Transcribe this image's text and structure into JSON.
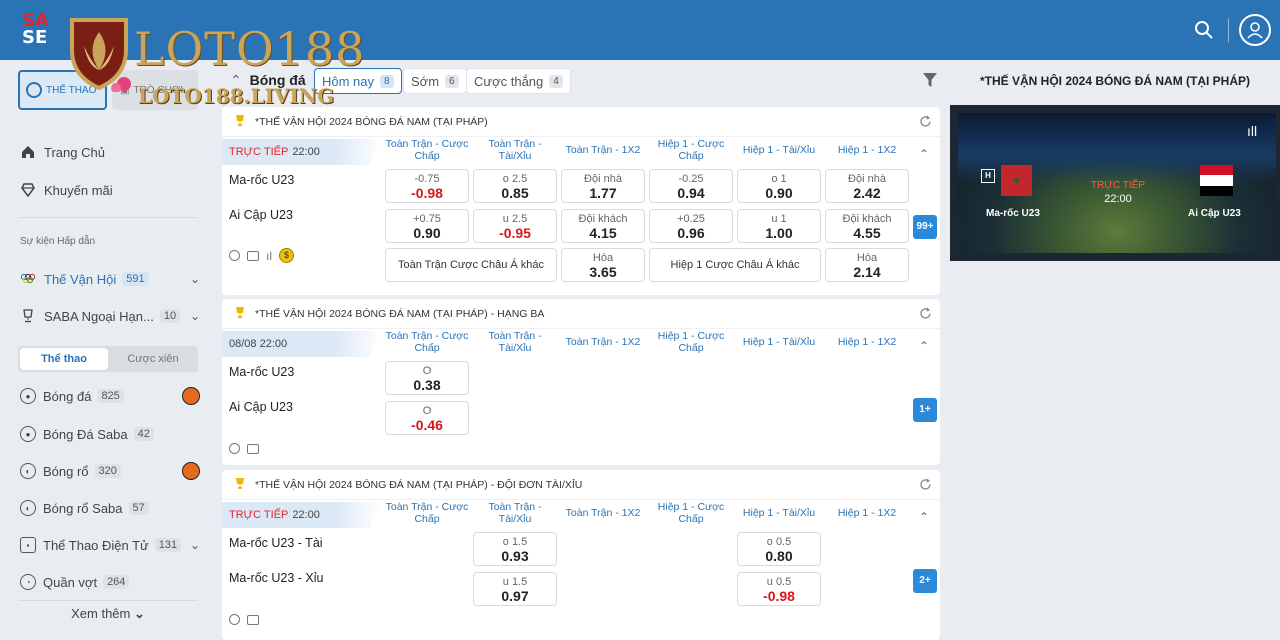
{
  "brand": {
    "saba_line1": "SA",
    "saba_line2": "SE",
    "logo_text": "LOTO188",
    "logo_sub": "LOTO188.LIVING"
  },
  "header": {
    "search_icon": "search-icon",
    "avatar_icon": "user-avatar-icon"
  },
  "sidebar": {
    "top_tabs": [
      {
        "label": "THỂ THAO",
        "active": true
      },
      {
        "label": "TRÒ CHƠI",
        "active": false
      }
    ],
    "nav": [
      {
        "label": "Trang Chủ",
        "icon": "home-icon"
      },
      {
        "label": "Khuyến mãi",
        "icon": "diamond-icon"
      }
    ],
    "section_title": "Sự kiện Hấp dẫn",
    "events": [
      {
        "label": "Thế Vận Hội",
        "count": "591"
      },
      {
        "label": "SABA Ngoại Hạn...",
        "count": "10"
      }
    ],
    "segment": {
      "on": "Thể thao",
      "off": "Cược xiên"
    },
    "sports": [
      {
        "label": "Bóng đá",
        "count": "825"
      },
      {
        "label": "Bóng Đá Saba",
        "count": "42"
      },
      {
        "label": "Bóng rổ",
        "count": "320"
      },
      {
        "label": "Bóng rổ Saba",
        "count": "57"
      },
      {
        "label": "Thể Thao Điện Tử",
        "count": "131"
      },
      {
        "label": "Quần vợt",
        "count": "264"
      }
    ],
    "see_more": "Xem thêm"
  },
  "filter_bar": {
    "title": "Bóng đá",
    "tabs": [
      {
        "label": "Hôm nay",
        "count": "8",
        "active": true
      },
      {
        "label": "Sớm",
        "count": "6",
        "active": false
      },
      {
        "label": "Cược thắng",
        "count": "4",
        "active": false
      }
    ]
  },
  "columns": [
    "Toàn Trận - Cược Chấp",
    "Toàn Trận - Tài/Xỉu",
    "Toàn Trận - 1X2",
    "Hiệp 1 - Cược Chấp",
    "Hiệp 1 - Tài/Xỉu",
    "Hiệp 1 - 1X2"
  ],
  "cards": [
    {
      "title": "*THẾ VẬN HỘI 2024 BÓNG ĐÁ NAM (TẠI PHÁP)",
      "live": "TRỰC TIẾP",
      "time": "22:00",
      "home": "Ma-rốc U23",
      "away": "Ai Cập U23",
      "home_odds": [
        {
          "sub": "-0.75",
          "val": "-0.98",
          "neg": true
        },
        {
          "sub": "o 2.5",
          "val": "0.85"
        },
        {
          "sub": "Đội nhà",
          "val": "1.77"
        },
        {
          "sub": "-0.25",
          "val": "0.94"
        },
        {
          "sub": "o 1",
          "val": "0.90"
        },
        {
          "sub": "Đội nhà",
          "val": "2.42"
        }
      ],
      "away_odds": [
        {
          "sub": "+0.75",
          "val": "0.90"
        },
        {
          "sub": "u 2.5",
          "val": "-0.95",
          "neg": true
        },
        {
          "sub": "Đội khách",
          "val": "4.15"
        },
        {
          "sub": "+0.25",
          "val": "0.96"
        },
        {
          "sub": "u 1",
          "val": "1.00"
        },
        {
          "sub": "Đội khách",
          "val": "4.55"
        }
      ],
      "extra_row": {
        "asian_full": "Toàn Trận Cược Châu Á khác",
        "draw_full_sub": "Hòa",
        "draw_full_val": "3.65",
        "asian_half": "Hiệp 1 Cược Châu Á khác",
        "draw_half_sub": "Hòa",
        "draw_half_val": "2.14"
      },
      "more": "99+"
    },
    {
      "title": "*THẾ VẬN HỘI 2024 BÓNG ĐÁ NAM (TẠI PHÁP) - HẠNG BA",
      "time": "08/08 22:00",
      "home": "Ma-rốc U23",
      "away": "Ai Cập U23",
      "home_odd": {
        "sub": "O",
        "val": "0.38"
      },
      "away_odd": {
        "sub": "O",
        "val": "-0.46",
        "neg": true
      },
      "more": "1+"
    },
    {
      "title": "*THẾ VẬN HỘI 2024 BÓNG ĐÁ NAM (TẠI PHÁP) - ĐỘI ĐƠN TÀI/XỈU",
      "live": "TRỰC TIẾP",
      "time": "22:00",
      "home": "Ma-rốc U23 - Tài",
      "away": "Ma-rốc U23 - Xỉu",
      "home_ft": {
        "sub": "o 1.5",
        "val": "0.93"
      },
      "home_ht": {
        "sub": "o 0.5",
        "val": "0.80"
      },
      "away_ft": {
        "sub": "u 1.5",
        "val": "0.97"
      },
      "away_ht": {
        "sub": "u 0.5",
        "val": "-0.98",
        "neg": true
      },
      "more": "2+"
    }
  ],
  "right_panel": {
    "title": "*THẾ VẬN HỘI 2024 BÓNG ĐÁ NAM (TẠI PHÁP)",
    "h_badge": "H",
    "live": "TRỰC TIẾP",
    "time": "22:00",
    "home": "Ma-rốc U23",
    "away": "Ai Cập U23"
  }
}
